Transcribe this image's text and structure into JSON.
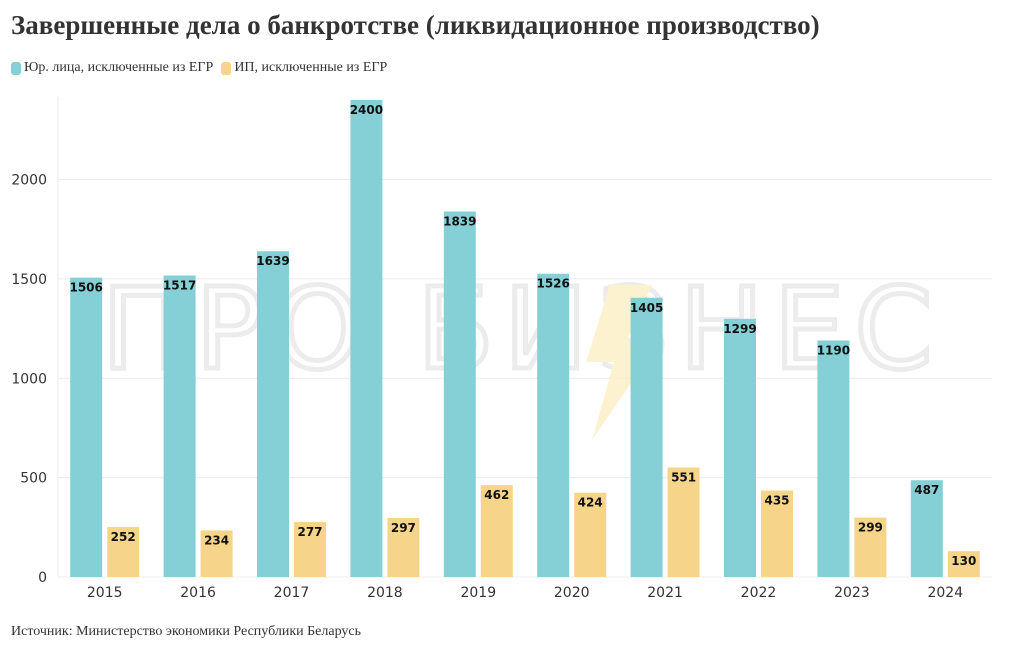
{
  "chart_data": {
    "type": "bar",
    "title": "Завершенные дела о банкротстве (ликвидационное производство)",
    "categories": [
      "2015",
      "2016",
      "2017",
      "2018",
      "2019",
      "2020",
      "2021",
      "2022",
      "2023",
      "2024"
    ],
    "series": [
      {
        "name": "Юр. лица, исключенные из ЕГР",
        "color": "#85d0d6",
        "values": [
          1506,
          1517,
          1639,
          2400,
          1839,
          1526,
          1405,
          1299,
          1190,
          487
        ]
      },
      {
        "name": "ИП, исключенные из ЕГР",
        "color": "#f6d58a",
        "values": [
          252,
          234,
          277,
          297,
          462,
          424,
          551,
          435,
          299,
          130
        ]
      }
    ],
    "y_ticks": [
      "0",
      "500",
      "1000",
      "1500",
      "2000"
    ],
    "ylim": [
      0,
      2400
    ],
    "grid": true,
    "legend_position": "top-left",
    "source": "Источник: Министерство экономики Республики Беларусь",
    "watermark": "ПРО БИЗНЕС"
  }
}
